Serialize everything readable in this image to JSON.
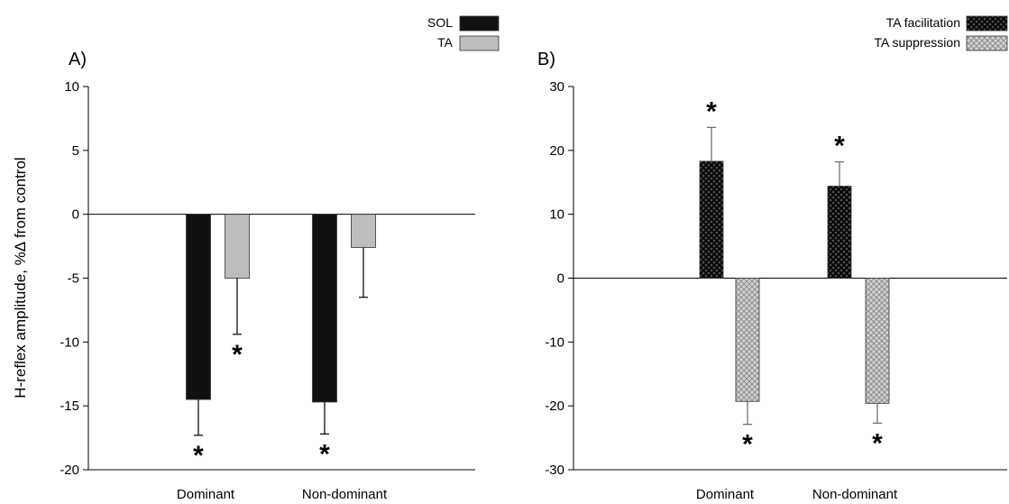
{
  "ylabel": "H-reflex amplitude, %Δ from control",
  "chart_data": [
    {
      "panel_label": "A)",
      "type": "bar",
      "categories": [
        "Dominant",
        "Non-dominant"
      ],
      "ylim": [
        -20,
        10
      ],
      "yticks": [
        "10",
        "5",
        "0",
        "-5",
        "-10",
        "-15",
        "-20"
      ],
      "ytick_values": [
        10,
        5,
        0,
        -5,
        -10,
        -15,
        -20
      ],
      "legend_position": "top-right",
      "series": [
        {
          "name": "SOL",
          "color": "#111111",
          "pattern": "solid",
          "values": [
            -14.5,
            -14.7
          ],
          "errors": [
            2.8,
            2.5
          ],
          "significant": [
            true,
            true
          ]
        },
        {
          "name": "TA",
          "color": "#bdbdbd",
          "pattern": "solid",
          "values": [
            -5.0,
            -2.6
          ],
          "errors": [
            4.4,
            3.9
          ],
          "significant": [
            true,
            false
          ]
        }
      ],
      "annotation_symbol": "*"
    },
    {
      "panel_label": "B)",
      "type": "bar",
      "categories": [
        "Dominant",
        "Non-dominant"
      ],
      "ylim": [
        -30,
        30
      ],
      "yticks": [
        "30",
        "20",
        "10",
        "0",
        "-10",
        "-20",
        "-30"
      ],
      "ytick_values": [
        30,
        20,
        10,
        0,
        -10,
        -20,
        -30
      ],
      "legend_position": "top-right",
      "series": [
        {
          "name": "TA facilitation",
          "color": "#222222",
          "pattern": "crosshatch-dark",
          "values": [
            18.3,
            14.4
          ],
          "errors": [
            5.3,
            3.8
          ],
          "significant": [
            true,
            true
          ]
        },
        {
          "name": "TA suppression",
          "color": "#b3b3b3",
          "pattern": "crosshatch-light",
          "values": [
            -19.3,
            -19.6
          ],
          "errors": [
            3.6,
            3.1
          ],
          "significant": [
            true,
            true
          ]
        }
      ],
      "annotation_symbol": "*"
    }
  ]
}
